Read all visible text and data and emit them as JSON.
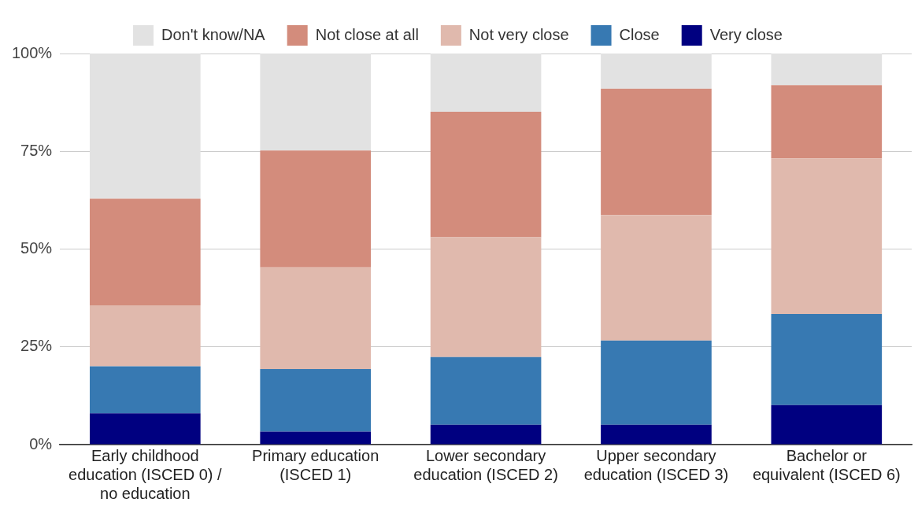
{
  "chart_data": {
    "type": "bar",
    "stacked": true,
    "categories": [
      "Early childhood education (ISCED 0) / no education",
      "Primary education (ISCED 1)",
      "Lower secondary education (ISCED 2)",
      "Upper secondary education (ISCED 3)",
      "Bachelor or equivalent (ISCED 6)"
    ],
    "series": [
      {
        "name": "Very close",
        "color": "#000080",
        "values": [
          8,
          3.3,
          5.1,
          5.1,
          10.1
        ]
      },
      {
        "name": "Close",
        "color": "#3779b2",
        "values": [
          12,
          16,
          17.3,
          21.5,
          23.3
        ]
      },
      {
        "name": "Not very close",
        "color": "#e0b9ad",
        "values": [
          15.6,
          26,
          30.6,
          32.1,
          39.8
        ]
      },
      {
        "name": "Not close at all",
        "color": "#d38c7c",
        "values": [
          27.3,
          29.9,
          32.1,
          32.3,
          18.7
        ]
      },
      {
        "name": "Don't know/NA",
        "color": "#e2e2e2",
        "values": [
          37.1,
          24.8,
          14.9,
          9,
          8.1
        ]
      }
    ],
    "ylim": [
      0,
      100
    ],
    "yticks": [
      {
        "value": 0,
        "label": "0%"
      },
      {
        "value": 25,
        "label": "25%"
      },
      {
        "value": 50,
        "label": "50%"
      },
      {
        "value": 75,
        "label": "75%"
      },
      {
        "value": 100,
        "label": "100%"
      }
    ],
    "grid": "y",
    "legend": "top"
  }
}
